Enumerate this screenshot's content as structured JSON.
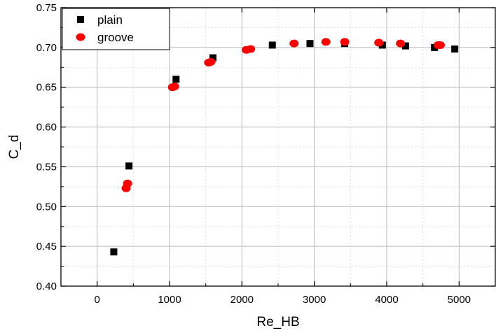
{
  "chart_data": {
    "type": "scatter",
    "title": "",
    "xlabel": "Re_HB",
    "ylabel": "C_d",
    "xlim": [
      -500,
      5500
    ],
    "ylim": [
      0.4,
      0.75
    ],
    "x_ticks": [
      0,
      1000,
      2000,
      3000,
      4000,
      5000
    ],
    "x_tick_labels": [
      "0",
      "1000",
      "2000",
      "3000",
      "4000",
      "5000"
    ],
    "y_ticks": [
      0.4,
      0.45,
      0.5,
      0.55,
      0.6,
      0.65,
      0.7,
      0.75
    ],
    "y_tick_labels": [
      "0.40",
      "0.45",
      "0.50",
      "0.55",
      "0.60",
      "0.65",
      "0.70",
      "0.75"
    ],
    "grid": true,
    "legend_position": "top-left",
    "series": [
      {
        "name": "plain",
        "marker": "square",
        "color": "#000000",
        "points": [
          {
            "x": 230,
            "y": 0.443
          },
          {
            "x": 440,
            "y": 0.551
          },
          {
            "x": 1090,
            "y": 0.66
          },
          {
            "x": 1600,
            "y": 0.687
          },
          {
            "x": 2420,
            "y": 0.703
          },
          {
            "x": 2940,
            "y": 0.705
          },
          {
            "x": 3420,
            "y": 0.705
          },
          {
            "x": 3940,
            "y": 0.703
          },
          {
            "x": 4260,
            "y": 0.702
          },
          {
            "x": 4660,
            "y": 0.7
          },
          {
            "x": 4940,
            "y": 0.698
          }
        ]
      },
      {
        "name": "groove",
        "marker": "circle",
        "color": "#ff0000",
        "points": [
          {
            "x": 400,
            "y": 0.523
          },
          {
            "x": 420,
            "y": 0.529
          },
          {
            "x": 1040,
            "y": 0.65
          },
          {
            "x": 1070,
            "y": 0.651
          },
          {
            "x": 1540,
            "y": 0.681
          },
          {
            "x": 1570,
            "y": 0.682
          },
          {
            "x": 2060,
            "y": 0.697
          },
          {
            "x": 2120,
            "y": 0.698
          },
          {
            "x": 2720,
            "y": 0.705
          },
          {
            "x": 3160,
            "y": 0.707
          },
          {
            "x": 3420,
            "y": 0.707
          },
          {
            "x": 3890,
            "y": 0.706
          },
          {
            "x": 4190,
            "y": 0.705
          },
          {
            "x": 4710,
            "y": 0.703
          },
          {
            "x": 4740,
            "y": 0.703
          }
        ]
      }
    ]
  }
}
